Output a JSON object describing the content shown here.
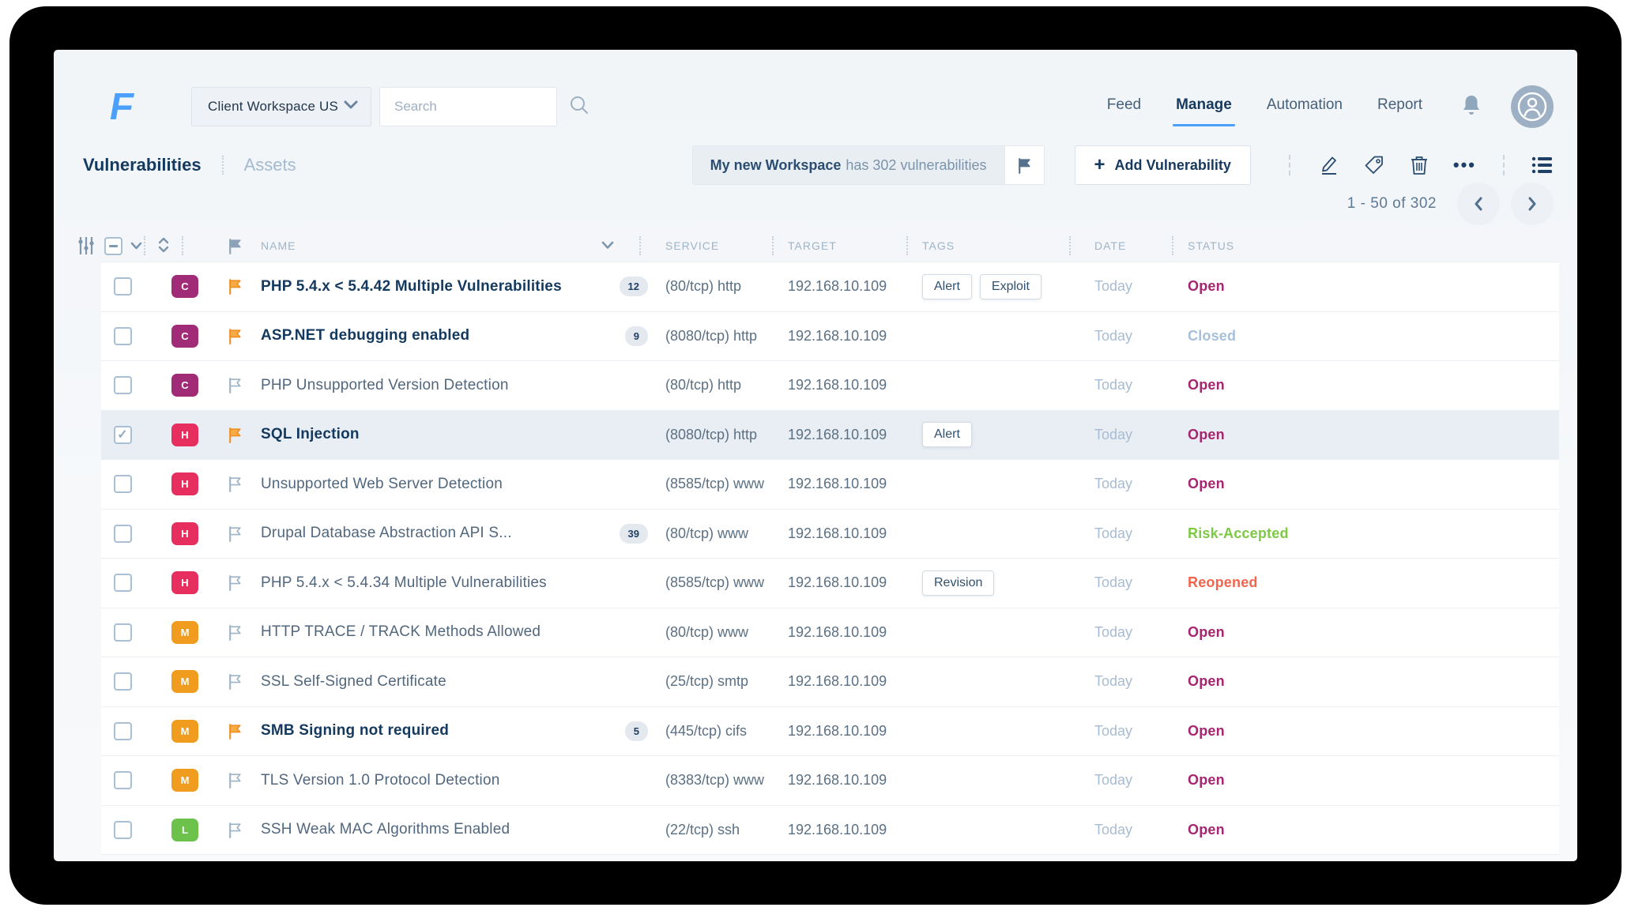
{
  "header": {
    "workspace_selector": {
      "value": "Client Workspace US"
    },
    "search": {
      "placeholder": "Search"
    },
    "nav": [
      "Feed",
      "Manage",
      "Automation",
      "Report"
    ]
  },
  "toolbar": {
    "tabs": [
      "Vulnerabilities",
      "Assets"
    ],
    "banner": {
      "workspace": "My new Workspace",
      "text": "has 302 vulnerabilities"
    },
    "add_button_label": "Add Vulnerability"
  },
  "pagination": {
    "label": "1 - 50  of  302"
  },
  "icons": {
    "ellipsis": "•••",
    "plus": "+"
  },
  "table": {
    "columns": [
      "NAME",
      "SERVICE",
      "TARGET",
      "TAGS",
      "DATE",
      "STATUS"
    ],
    "rows": [
      {
        "severity": "C",
        "flagged": true,
        "bold": true,
        "checked": false,
        "selected": false,
        "name": "PHP 5.4.x < 5.4.42 Multiple Vulnerabilities",
        "count": "12",
        "service": "(80/tcp) http",
        "target": "192.168.10.109",
        "tags": [
          "Alert",
          "Exploit"
        ],
        "date": "Today",
        "status": "Open",
        "status_key": "open"
      },
      {
        "severity": "C",
        "flagged": true,
        "bold": true,
        "checked": false,
        "selected": false,
        "name": "ASP.NET debugging enabled",
        "count": "9",
        "service": "(8080/tcp) http",
        "target": "192.168.10.109",
        "tags": [],
        "date": "Today",
        "status": "Closed",
        "status_key": "closed"
      },
      {
        "severity": "C",
        "flagged": false,
        "bold": false,
        "checked": false,
        "selected": false,
        "name": "PHP Unsupported Version Detection",
        "count": null,
        "service": "(80/tcp) http",
        "target": "192.168.10.109",
        "tags": [],
        "date": "Today",
        "status": "Open",
        "status_key": "open"
      },
      {
        "severity": "H",
        "flagged": true,
        "bold": true,
        "checked": true,
        "selected": true,
        "name": "SQL Injection",
        "count": null,
        "service": "(8080/tcp) http",
        "target": "192.168.10.109",
        "tags": [
          "Alert"
        ],
        "date": "Today",
        "status": "Open",
        "status_key": "open"
      },
      {
        "severity": "H",
        "flagged": false,
        "bold": false,
        "checked": false,
        "selected": false,
        "name": "Unsupported Web Server Detection",
        "count": null,
        "service": "(8585/tcp) www",
        "target": "192.168.10.109",
        "tags": [],
        "date": "Today",
        "status": "Open",
        "status_key": "open"
      },
      {
        "severity": "H",
        "flagged": false,
        "bold": false,
        "checked": false,
        "selected": false,
        "name": "Drupal Database Abstraction API S...",
        "count": "39",
        "service": "(80/tcp) www",
        "target": "192.168.10.109",
        "tags": [],
        "date": "Today",
        "status": "Risk-Accepted",
        "status_key": "risk-accepted"
      },
      {
        "severity": "H",
        "flagged": false,
        "bold": false,
        "checked": false,
        "selected": false,
        "name": "PHP 5.4.x < 5.4.34 Multiple Vulnerabilities",
        "count": null,
        "service": "(8585/tcp) www",
        "target": "192.168.10.109",
        "tags": [
          "Revision"
        ],
        "date": "Today",
        "status": "Reopened",
        "status_key": "reopened"
      },
      {
        "severity": "M",
        "flagged": false,
        "bold": false,
        "checked": false,
        "selected": false,
        "name": "HTTP TRACE / TRACK Methods Allowed",
        "count": null,
        "service": "(80/tcp) www",
        "target": "192.168.10.109",
        "tags": [],
        "date": "Today",
        "status": "Open",
        "status_key": "open"
      },
      {
        "severity": "M",
        "flagged": false,
        "bold": false,
        "checked": false,
        "selected": false,
        "name": "SSL Self-Signed Certificate",
        "count": null,
        "service": "(25/tcp) smtp",
        "target": "192.168.10.109",
        "tags": [],
        "date": "Today",
        "status": "Open",
        "status_key": "open"
      },
      {
        "severity": "M",
        "flagged": true,
        "bold": true,
        "checked": false,
        "selected": false,
        "name": "SMB Signing not required",
        "count": "5",
        "service": "(445/tcp) cifs",
        "target": "192.168.10.109",
        "tags": [],
        "date": "Today",
        "status": "Open",
        "status_key": "open"
      },
      {
        "severity": "M",
        "flagged": false,
        "bold": false,
        "checked": false,
        "selected": false,
        "name": "TLS Version 1.0 Protocol Detection",
        "count": null,
        "service": "(8383/tcp) www",
        "target": "192.168.10.109",
        "tags": [],
        "date": "Today",
        "status": "Open",
        "status_key": "open"
      },
      {
        "severity": "L",
        "flagged": false,
        "bold": false,
        "checked": false,
        "selected": false,
        "name": "SSH Weak MAC Algorithms Enabled",
        "count": null,
        "service": "(22/tcp) ssh",
        "target": "192.168.10.109",
        "tags": [],
        "date": "Today",
        "status": "Open",
        "status_key": "open"
      }
    ]
  },
  "colors": {
    "accent_blue": "#4aa0fc",
    "sev_c": "#a02b77",
    "sev_h": "#e62e5f",
    "sev_m": "#ef9c1f",
    "sev_l": "#6dc24b",
    "status_open": "#a62470",
    "status_closed": "#a6c0dc",
    "status_risk_accepted": "#7ec944",
    "status_reopened": "#f2654d",
    "flag_orange": "#f6a13b",
    "flag_gray": "#9db3c6"
  }
}
